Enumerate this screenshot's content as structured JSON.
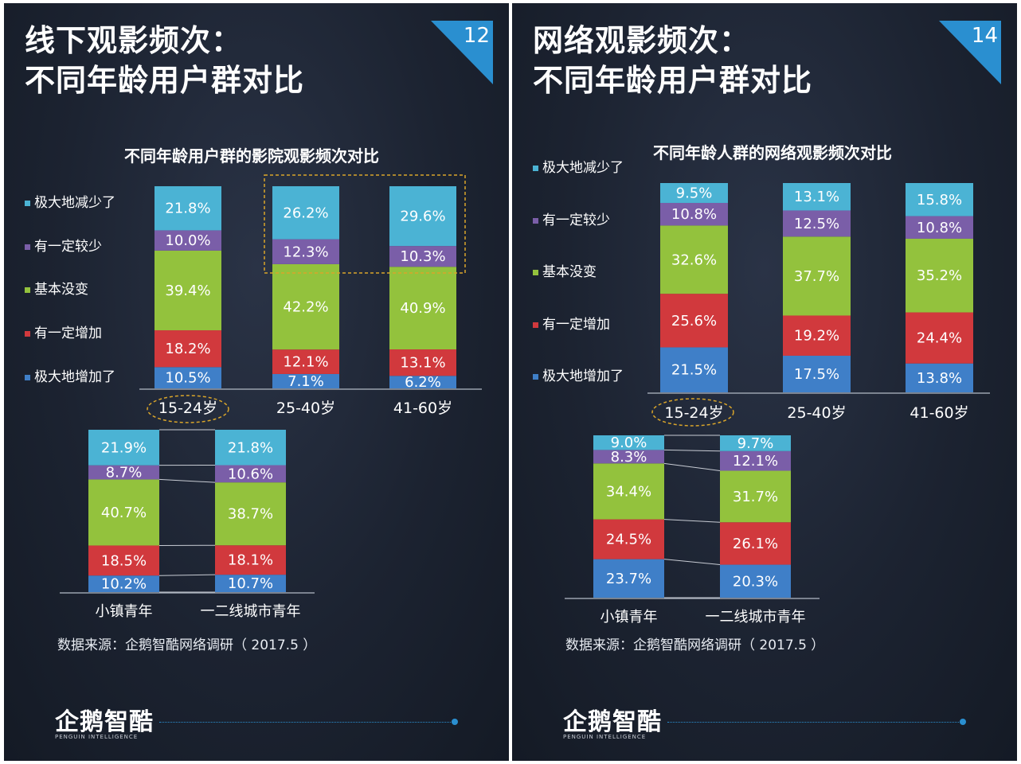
{
  "colors": {
    "greatly_reduced": "#4bb3d4",
    "somewhat_less": "#7a5ea8",
    "no_change": "#93c23d",
    "somewhat_more": "#d1393d",
    "greatly_increased": "#3f7fc8",
    "accent": "#2a8fd0",
    "highlight": "#d9a52a"
  },
  "legend": [
    "极大地减少了",
    "有一定较少",
    "基本没变",
    "有一定增加",
    "极大地增加了"
  ],
  "left": {
    "title_line1": "线下观影频次：",
    "title_line2": "不同年龄用户群对比",
    "page_number": "12",
    "source": "数据来源：企鹅智酷网络调研（ 2017.5 ）",
    "logo": "企鹅智酷",
    "logo_sub": "PENGUIN INTELLIGENCE"
  },
  "right": {
    "title_line1": "网络观影频次：",
    "title_line2": "不同年龄用户群对比",
    "page_number": "14",
    "source": "数据来源：企鹅智酷网络调研（ 2017.5 ）",
    "logo": "企鹅智酷",
    "logo_sub": "PENGUIN INTELLIGENCE"
  },
  "chart_data": [
    {
      "type": "bar",
      "stacked": true,
      "title": "不同年龄用户群的影院观影频次对比",
      "categories": [
        "15-24岁",
        "25-40岁",
        "41-60岁"
      ],
      "highlighted_category": "15-24岁",
      "highlighted_box": [
        "25-40岁",
        "41-60岁"
      ],
      "series": [
        {
          "name": "极大地增加了",
          "values": [
            10.5,
            7.1,
            6.2
          ],
          "labels": [
            "10.5%",
            "7.1%",
            "6.2%"
          ]
        },
        {
          "name": "有一定增加",
          "values": [
            18.2,
            12.1,
            13.1
          ],
          "labels": [
            "18.2%",
            "12.1%",
            "13.1%"
          ]
        },
        {
          "name": "基本没变",
          "values": [
            39.4,
            42.2,
            40.9
          ],
          "labels": [
            "39.4%",
            "42.2%",
            "40.9%"
          ]
        },
        {
          "name": "有一定较少",
          "values": [
            10.0,
            12.3,
            10.3
          ],
          "labels": [
            "10.0%",
            "12.3%",
            "10.3%"
          ]
        },
        {
          "name": "极大地减少了",
          "values": [
            21.8,
            26.2,
            29.6
          ],
          "labels": [
            "21.8%",
            "26.2%",
            "29.6%"
          ]
        }
      ]
    },
    {
      "type": "bar",
      "stacked": true,
      "title": "",
      "categories": [
        "小镇青年",
        "一二线城市青年"
      ],
      "series": [
        {
          "name": "极大地增加了",
          "values": [
            10.2,
            10.7
          ],
          "labels": [
            "10.2%",
            "10.7%"
          ]
        },
        {
          "name": "有一定增加",
          "values": [
            18.5,
            18.1
          ],
          "labels": [
            "18.5%",
            "18.1%"
          ]
        },
        {
          "name": "基本没变",
          "values": [
            40.7,
            38.7
          ],
          "labels": [
            "40.7%",
            "38.7%"
          ]
        },
        {
          "name": "有一定较少",
          "values": [
            8.7,
            10.6
          ],
          "labels": [
            "8.7%",
            "10.6%"
          ]
        },
        {
          "name": "极大地减少了",
          "values": [
            21.9,
            21.8
          ],
          "labels": [
            "21.9%",
            "21.8%"
          ]
        }
      ]
    },
    {
      "type": "bar",
      "stacked": true,
      "title": "不同年龄人群的网络观影频次对比",
      "categories": [
        "15-24岁",
        "25-40岁",
        "41-60岁"
      ],
      "highlighted_category": "15-24岁",
      "series": [
        {
          "name": "极大地增加了",
          "values": [
            21.5,
            17.5,
            13.8
          ],
          "labels": [
            "21.5%",
            "17.5%",
            "13.8%"
          ]
        },
        {
          "name": "有一定增加",
          "values": [
            25.6,
            19.2,
            24.4
          ],
          "labels": [
            "25.6%",
            "19.2%",
            "24.4%"
          ]
        },
        {
          "name": "基本没变",
          "values": [
            32.6,
            37.7,
            35.2
          ],
          "labels": [
            "32.6%",
            "37.7%",
            "35.2%"
          ]
        },
        {
          "name": "有一定较少",
          "values": [
            10.8,
            12.5,
            10.8
          ],
          "labels": [
            "10.8%",
            "12.5%",
            "10.8%"
          ]
        },
        {
          "name": "极大地减少了",
          "values": [
            9.5,
            13.1,
            15.8
          ],
          "labels": [
            "9.5%",
            "13.1%",
            "15.8%"
          ]
        }
      ]
    },
    {
      "type": "bar",
      "stacked": true,
      "title": "",
      "categories": [
        "小镇青年",
        "一二线城市青年"
      ],
      "series": [
        {
          "name": "极大地增加了",
          "values": [
            23.7,
            20.3
          ],
          "labels": [
            "23.7%",
            "20.3%"
          ]
        },
        {
          "name": "有一定增加",
          "values": [
            24.5,
            26.1
          ],
          "labels": [
            "24.5%",
            "26.1%"
          ]
        },
        {
          "name": "基本没变",
          "values": [
            34.4,
            31.7
          ],
          "labels": [
            "34.4%",
            "31.7%"
          ]
        },
        {
          "name": "有一定较少",
          "values": [
            8.3,
            12.1
          ],
          "labels": [
            "8.3%",
            "12.1%"
          ]
        },
        {
          "name": "极大地减少了",
          "values": [
            9.0,
            9.7
          ],
          "labels": [
            "9.0%",
            "9.7%"
          ]
        }
      ]
    }
  ]
}
